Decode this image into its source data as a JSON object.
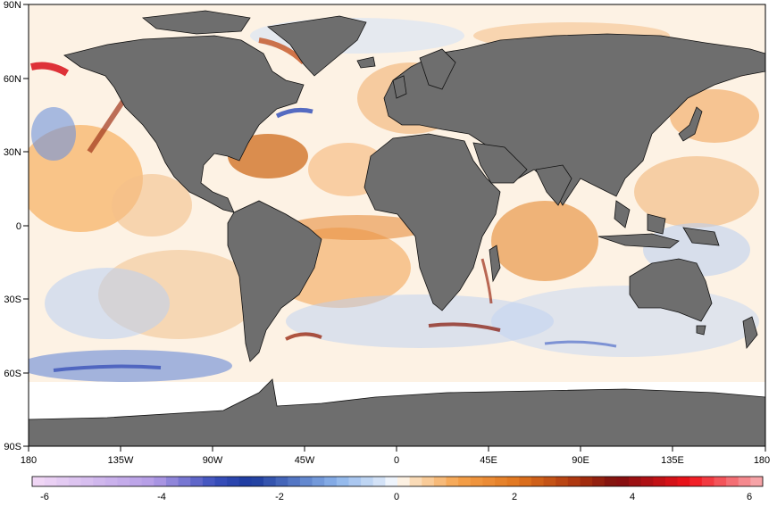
{
  "map": {
    "lat_labels": [
      "90N",
      "60N",
      "30N",
      "0",
      "30S",
      "60S",
      "90S"
    ],
    "lon_labels": [
      "180",
      "135W",
      "90W",
      "45W",
      "0",
      "45E",
      "90E",
      "135E",
      "180"
    ],
    "colorbar": {
      "labels": [
        "-6",
        "-4",
        "-2",
        "0",
        "2",
        "4",
        "6"
      ],
      "range": [
        -6,
        6
      ],
      "step": 0.2,
      "colors": {
        "neg6": "#f3d9f6",
        "neg4": "#b49ce6",
        "neg3": "#3a4fbd",
        "neg2": "#1c3a9e",
        "neg1": "#8bb3ea",
        "neg_small": "#dde9f9",
        "zero": "#ffffff",
        "pos_small": "#fbe3c6",
        "pos1": "#f5a24b",
        "pos2": "#e0741e",
        "pos3": "#a8310e",
        "pos4": "#7e0f0f",
        "pos5": "#f0121a",
        "pos6": "#f7b0b4"
      }
    },
    "land_color": "#6e6e6e",
    "ice_color": "#ffffff"
  }
}
